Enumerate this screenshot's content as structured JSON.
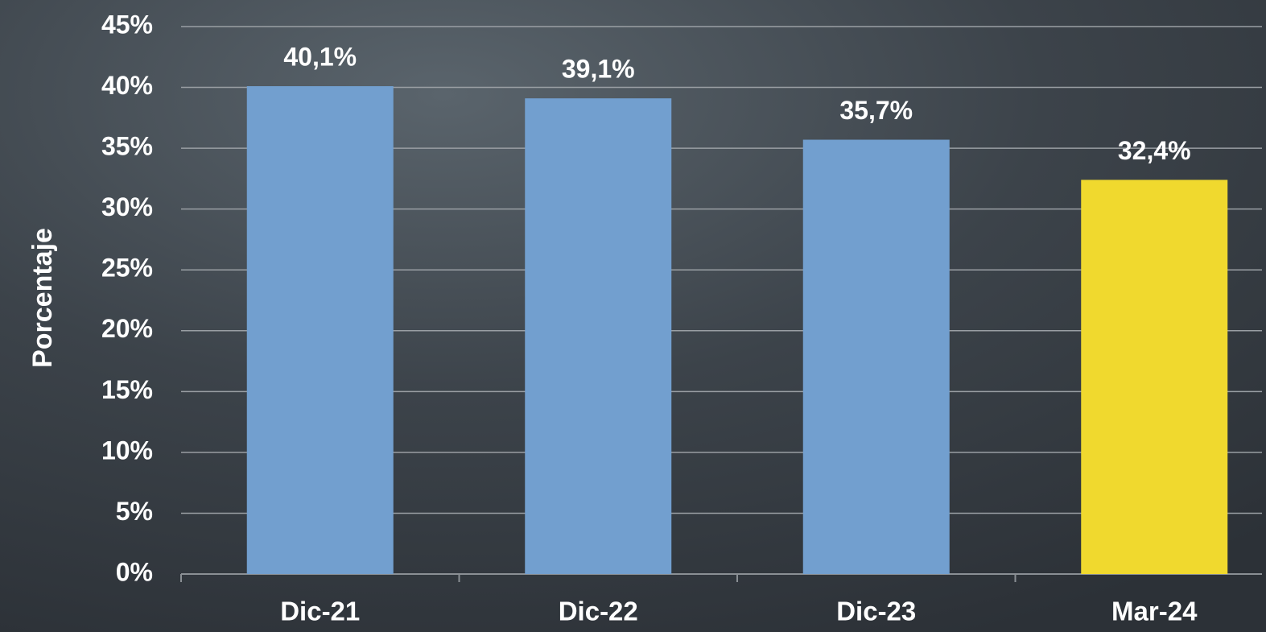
{
  "chart_data": {
    "type": "bar",
    "y_label": "Porcentaje",
    "categories": [
      "Dic-21",
      "Dic-22",
      "Dic-23",
      "Mar-24"
    ],
    "values": [
      40.1,
      39.1,
      35.7,
      32.4
    ],
    "value_labels": [
      "40,1%",
      "39,1%",
      "35,7%",
      "32,4%"
    ],
    "colors": [
      "#729fcf",
      "#729fcf",
      "#729fcf",
      "#f0d92e"
    ],
    "ylim": [
      0,
      45
    ],
    "yticks": [
      {
        "value": 0,
        "label": "0%"
      },
      {
        "value": 5,
        "label": "5%"
      },
      {
        "value": 10,
        "label": "10%"
      },
      {
        "value": 15,
        "label": "15%"
      },
      {
        "value": 20,
        "label": "20%"
      },
      {
        "value": 25,
        "label": "25%"
      },
      {
        "value": 30,
        "label": "30%"
      },
      {
        "value": 35,
        "label": "35%"
      },
      {
        "value": 40,
        "label": "40%"
      },
      {
        "value": 45,
        "label": "45%"
      }
    ],
    "grid": true
  }
}
